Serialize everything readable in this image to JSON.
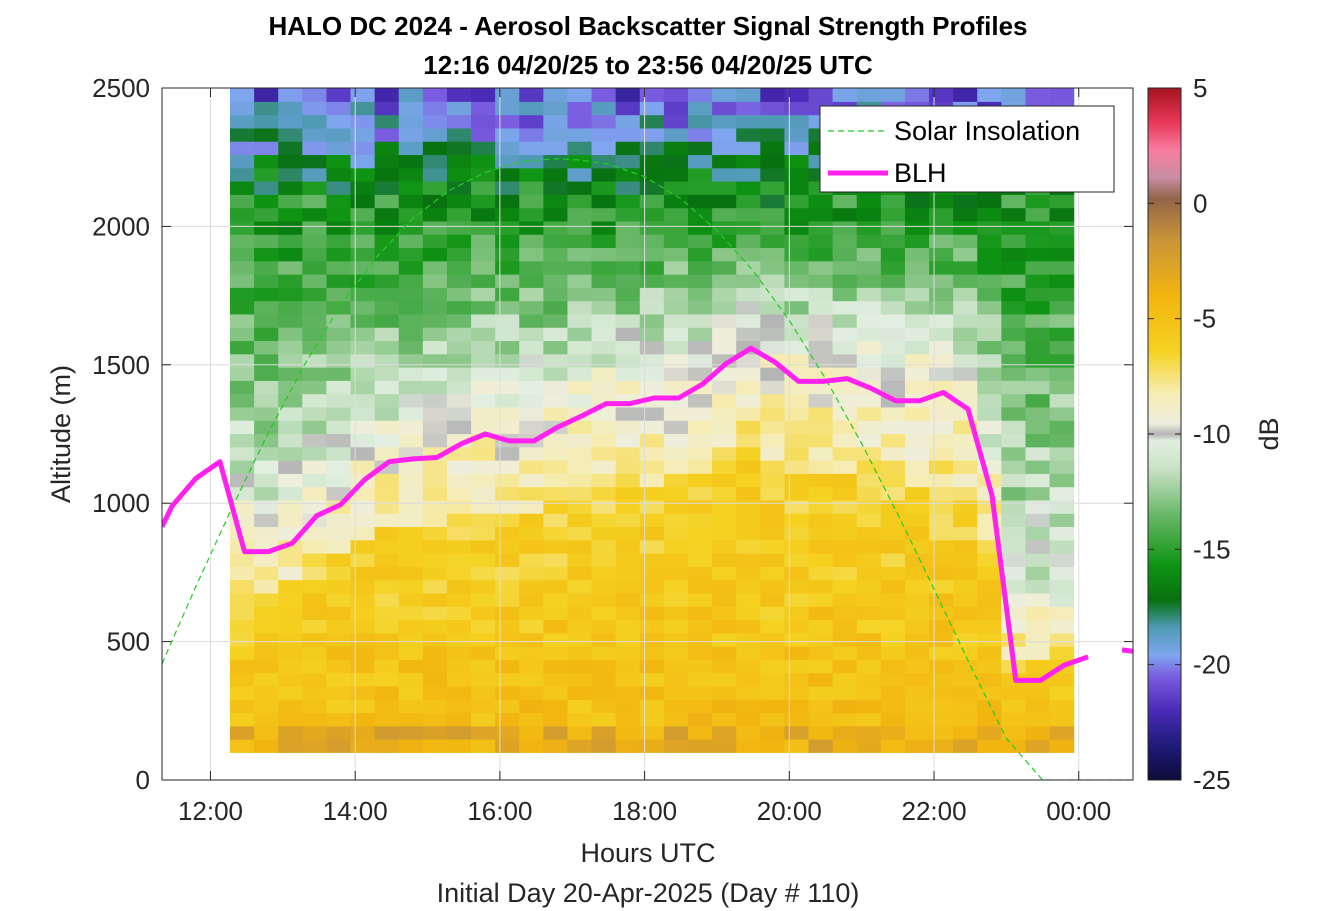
{
  "chart_data": {
    "type": "heatmap",
    "title": "HALO DC 2024 - Aerosol Backscatter Signal Strength Profiles",
    "subtitle": "12:16 04/20/25 to 23:56 04/20/25  UTC",
    "xlabel": "Hours UTC",
    "xlabel2": "Initial Day 20-Apr-2025 (Day # 110)",
    "ylabel": "Altitude (m)",
    "colorbar_label": "dB",
    "x_range": [
      11.33,
      24.75
    ],
    "ylim": [
      0,
      2500
    ],
    "clim": [
      -25,
      5
    ],
    "x_ticks": [
      12,
      14,
      16,
      18,
      20,
      22,
      24
    ],
    "x_tick_labels": [
      "12:00",
      "14:00",
      "16:00",
      "18:00",
      "20:00",
      "22:00",
      "00:00"
    ],
    "y_ticks": [
      0,
      500,
      1000,
      1500,
      2000,
      2500
    ],
    "y_tick_labels": [
      "0",
      "500",
      "1000",
      "1500",
      "2000",
      "2500"
    ],
    "colorbar_ticks": [
      -25,
      -20,
      -15,
      -10,
      -5,
      0,
      5
    ],
    "colorbar_tick_labels": [
      "-25",
      "-20",
      "-15",
      "-10",
      "-5",
      "0",
      "5"
    ],
    "grid": true,
    "legend_placement": "top-right",
    "heatmap": {
      "x_start": 12.27,
      "x_end": 23.93,
      "y_start": 100,
      "y_end": 2500,
      "columns": 35,
      "rows": 50
    },
    "series": [
      {
        "name": "Solar Insolation",
        "style": "dashed",
        "color": "#22cc22",
        "x": [
          11.33,
          11.8,
          12.3,
          12.8,
          13.3,
          13.8,
          14.3,
          14.8,
          15.3,
          15.8,
          16.3,
          16.8,
          17.1,
          17.5,
          18.0,
          18.5,
          19.0,
          19.5,
          20.0,
          20.5,
          21.0,
          21.5,
          22.0,
          22.5,
          23.0,
          23.5,
          23.7,
          23.95,
          24.75
        ],
        "values": [
          420,
          700,
          985,
          1255,
          1500,
          1715,
          1890,
          2030,
          2130,
          2195,
          2235,
          2245,
          2240,
          2225,
          2180,
          2100,
          1985,
          1840,
          1660,
          1450,
          1215,
          960,
          690,
          415,
          150,
          0,
          0,
          0,
          0
        ]
      },
      {
        "name": "BLH",
        "style": "solid",
        "color": "#ff22ee",
        "x": [
          11.33,
          11.47,
          11.8,
          12.13,
          12.47,
          12.8,
          13.13,
          13.47,
          13.8,
          14.13,
          14.47,
          14.8,
          15.13,
          15.47,
          15.8,
          16.13,
          16.47,
          16.8,
          17.13,
          17.47,
          17.8,
          18.13,
          18.47,
          18.8,
          19.13,
          19.47,
          19.8,
          20.13,
          20.47,
          20.8,
          21.13,
          21.47,
          21.8,
          22.13,
          22.47,
          22.8,
          23.13,
          23.47,
          23.8,
          24.13
        ],
        "values": [
          915,
          990,
          1090,
          1150,
          825,
          825,
          855,
          955,
          995,
          1085,
          1150,
          1160,
          1165,
          1215,
          1250,
          1225,
          1225,
          1275,
          1315,
          1360,
          1360,
          1380,
          1380,
          1430,
          1505,
          1560,
          1510,
          1440,
          1440,
          1450,
          1415,
          1370,
          1370,
          1400,
          1340,
          1030,
          360,
          360,
          415,
          445
        ],
        "x_tail": [
          24.6,
          24.75
        ],
        "values_tail": [
          470,
          465
        ]
      }
    ]
  }
}
